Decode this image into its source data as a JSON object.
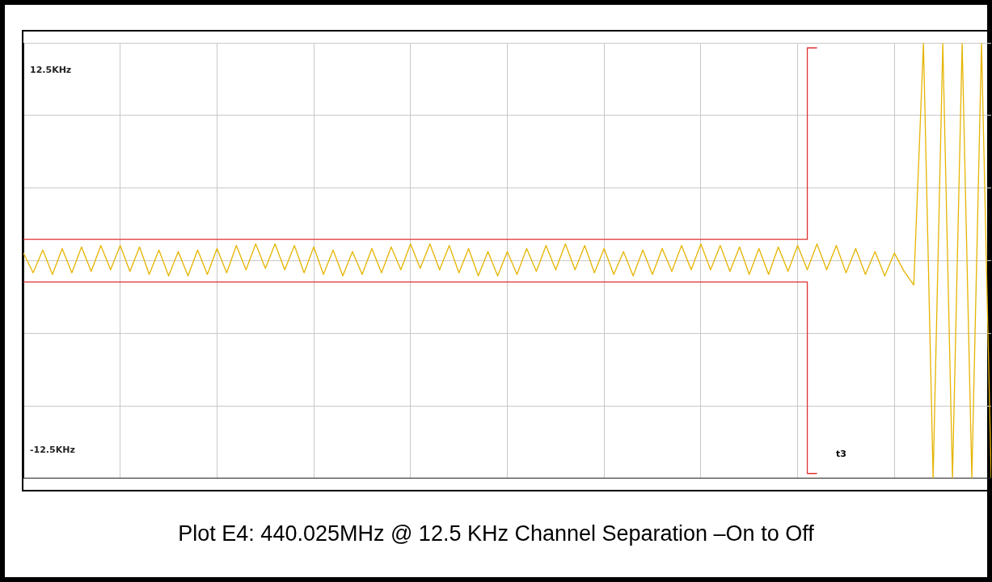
{
  "chart_data": {
    "type": "line",
    "title": "Plot E4: 440.025MHz @ 12.5 KHz Channel Separation –On to Off",
    "categories": [
      null,
      null,
      null,
      null,
      null,
      null,
      null,
      null,
      null,
      null,
      null,
      null,
      null,
      null,
      null,
      null,
      null,
      null,
      null,
      null,
      null,
      null,
      null,
      null,
      null,
      null,
      null,
      null,
      null,
      null,
      null,
      null,
      null,
      null,
      null,
      null,
      null,
      null,
      null,
      null,
      null,
      null,
      null,
      null,
      null,
      null,
      null,
      null,
      null,
      null,
      null,
      null,
      null,
      null,
      null,
      null,
      null,
      null,
      null,
      null,
      null,
      null,
      null,
      null,
      null,
      null,
      null,
      null,
      null,
      null,
      null,
      null,
      null,
      null,
      null,
      null,
      null,
      null,
      null,
      null,
      null,
      null,
      null,
      null,
      null,
      null,
      null,
      null,
      null,
      null,
      null,
      null,
      null,
      null,
      null,
      null,
      null,
      null,
      null,
      null,
      null
    ],
    "ylim": [
      -14.3,
      14.3
    ],
    "yticks": [
      {
        "value": -14.3,
        "label": null
      },
      {
        "value": -12.5,
        "label": "-12.5KHz"
      },
      {
        "value": -9.55,
        "label": null
      },
      {
        "value": -4.77,
        "label": null
      },
      {
        "value": 0,
        "label": null
      },
      {
        "value": 4.77,
        "label": null
      },
      {
        "value": 9.55,
        "label": null
      },
      {
        "value": 12.5,
        "label": "12.5KHz"
      },
      {
        "value": 14.3,
        "label": null
      }
    ],
    "tick_labels": "y",
    "grid": true,
    "legend": false,
    "marker": "none",
    "line_style": "solid",
    "annotations": [
      "t3"
    ],
    "series": [
      {
        "color": "#e6b400",
        "values": [
          0.5,
          -0.8,
          0.7,
          -0.9,
          0.8,
          -0.8,
          0.9,
          -0.7,
          1,
          -0.6,
          1,
          -0.7,
          0.9,
          -0.9,
          0.7,
          -1,
          0.6,
          -1,
          0.7,
          -0.9,
          0.8,
          -0.8,
          1,
          -0.6,
          1.1,
          -0.5,
          1.1,
          -0.6,
          1,
          -0.8,
          0.9,
          -0.9,
          0.7,
          -1,
          0.6,
          -0.9,
          0.8,
          -0.8,
          0.9,
          -0.6,
          1.1,
          -0.5,
          1.1,
          -0.6,
          1,
          -0.8,
          0.8,
          -1,
          0.6,
          -1,
          0.6,
          -0.9,
          0.8,
          -0.7,
          1,
          -0.6,
          1.1,
          -0.6,
          1,
          -0.8,
          0.8,
          -0.9,
          0.6,
          -1,
          0.7,
          -0.9,
          0.8,
          -0.7,
          1,
          -0.6,
          1.1,
          -0.6,
          1,
          -0.7,
          0.9,
          -0.9,
          0.8,
          -0.9,
          0.9,
          -0.7,
          1,
          -0.6,
          1.1,
          -0.6,
          1,
          -0.8,
          0.8,
          -0.9,
          0.6,
          -1,
          0.5,
          -0.7,
          -1.6,
          14.3,
          -14.3,
          14.3,
          -14.3,
          14.3,
          -14.3,
          14.3,
          -14.3
        ]
      },
      {
        "type": "step",
        "color": "#e03030",
        "values": [
          1.4,
          1.4,
          1.4,
          1.4,
          1.4,
          1.4,
          1.4,
          1.4,
          1.4,
          1.4,
          1.4,
          1.4,
          1.4,
          1.4,
          1.4,
          1.4,
          1.4,
          1.4,
          1.4,
          1.4,
          1.4,
          1.4,
          1.4,
          1.4,
          1.4,
          1.4,
          1.4,
          1.4,
          1.4,
          1.4,
          1.4,
          1.4,
          1.4,
          1.4,
          1.4,
          1.4,
          1.4,
          1.4,
          1.4,
          1.4,
          1.4,
          1.4,
          1.4,
          1.4,
          1.4,
          1.4,
          1.4,
          1.4,
          1.4,
          1.4,
          1.4,
          1.4,
          1.4,
          1.4,
          1.4,
          1.4,
          1.4,
          1.4,
          1.4,
          1.4,
          1.4,
          1.4,
          1.4,
          1.4,
          1.4,
          1.4,
          1.4,
          1.4,
          1.4,
          1.4,
          1.4,
          1.4,
          1.4,
          1.4,
          1.4,
          1.4,
          1.4,
          1.4,
          1.4,
          1.4,
          1.4,
          1.4,
          14,
          null,
          null,
          null,
          null,
          null,
          null,
          null,
          null,
          null,
          null,
          null,
          null,
          null,
          null,
          null,
          null,
          null,
          null
        ]
      },
      {
        "type": "step",
        "color": "#e03030",
        "values": [
          -1.4,
          -1.4,
          -1.4,
          -1.4,
          -1.4,
          -1.4,
          -1.4,
          -1.4,
          -1.4,
          -1.4,
          -1.4,
          -1.4,
          -1.4,
          -1.4,
          -1.4,
          -1.4,
          -1.4,
          -1.4,
          -1.4,
          -1.4,
          -1.4,
          -1.4,
          -1.4,
          -1.4,
          -1.4,
          -1.4,
          -1.4,
          -1.4,
          -1.4,
          -1.4,
          -1.4,
          -1.4,
          -1.4,
          -1.4,
          -1.4,
          -1.4,
          -1.4,
          -1.4,
          -1.4,
          -1.4,
          -1.4,
          -1.4,
          -1.4,
          -1.4,
          -1.4,
          -1.4,
          -1.4,
          -1.4,
          -1.4,
          -1.4,
          -1.4,
          -1.4,
          -1.4,
          -1.4,
          -1.4,
          -1.4,
          -1.4,
          -1.4,
          -1.4,
          -1.4,
          -1.4,
          -1.4,
          -1.4,
          -1.4,
          -1.4,
          -1.4,
          -1.4,
          -1.4,
          -1.4,
          -1.4,
          -1.4,
          -1.4,
          -1.4,
          -1.4,
          -1.4,
          -1.4,
          -1.4,
          -1.4,
          -1.4,
          -1.4,
          -1.4,
          -1.4,
          -14,
          null,
          null,
          null,
          null,
          null,
          null,
          null,
          null,
          null,
          null,
          null,
          null,
          null,
          null,
          null,
          null,
          null,
          null
        ]
      }
    ]
  }
}
